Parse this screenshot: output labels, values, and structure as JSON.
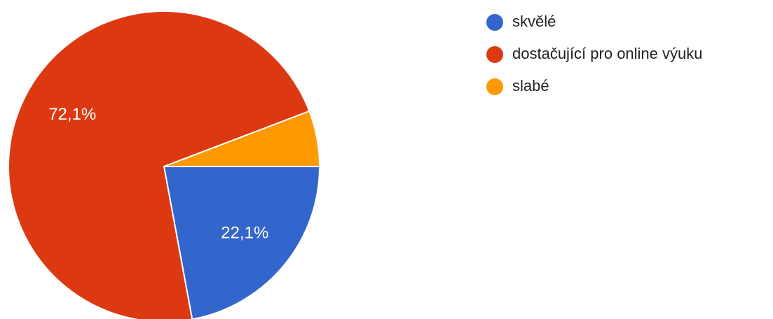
{
  "chart_data": {
    "type": "pie",
    "categories": [
      "skvělé",
      "dostačující pro online výuku",
      "slabé"
    ],
    "values": [
      22.1,
      72.1,
      5.8
    ],
    "value_labels": [
      "22,1%",
      "72,1%",
      null
    ],
    "colors": [
      "#3366cc",
      "#dc3912",
      "#ff9900"
    ],
    "legend": "right"
  }
}
